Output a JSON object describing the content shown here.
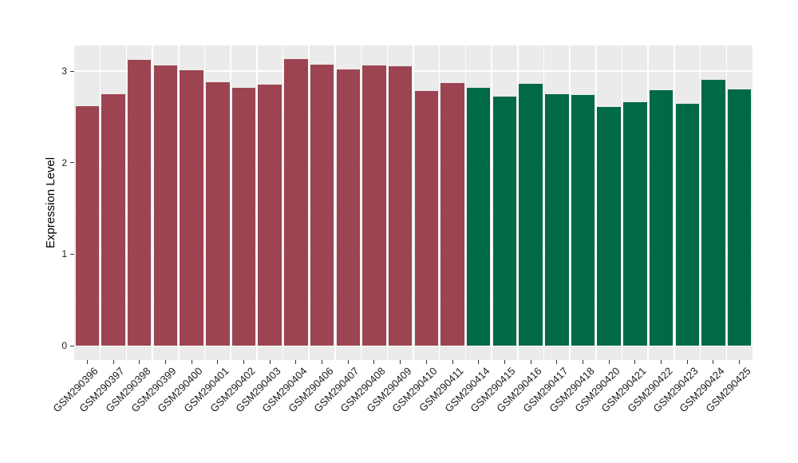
{
  "chart_data": {
    "type": "bar",
    "title": "",
    "xlabel": "",
    "ylabel": "Expression Level",
    "ylim": [
      0,
      3.28
    ],
    "yticks": [
      0,
      1,
      2,
      3
    ],
    "yticks_minor": [
      0.5,
      1.5,
      2.5
    ],
    "grid": "on",
    "legend": "none",
    "panel_background": "#EBEBEB",
    "grid_color": "#FFFFFF",
    "tick_mark_color": "#333333",
    "axis_text_color": "#1A1A1A",
    "group_colors": {
      "maroon": "#9C4452",
      "green": "#006948"
    },
    "bar_groups": [
      "maroon",
      "maroon",
      "maroon",
      "maroon",
      "maroon",
      "maroon",
      "maroon",
      "maroon",
      "maroon",
      "maroon",
      "maroon",
      "maroon",
      "maroon",
      "maroon",
      "maroon",
      "green",
      "green",
      "green",
      "green",
      "green",
      "green",
      "green",
      "green",
      "green",
      "green",
      "green"
    ],
    "categories": [
      "GSM290396",
      "GSM290397",
      "GSM290398",
      "GSM290399",
      "GSM290400",
      "GSM290401",
      "GSM290402",
      "GSM290403",
      "GSM290404",
      "GSM290406",
      "GSM290407",
      "GSM290408",
      "GSM290409",
      "GSM290410",
      "GSM290411",
      "GSM290414",
      "GSM290415",
      "GSM290416",
      "GSM290417",
      "GSM290418",
      "GSM290420",
      "GSM290421",
      "GSM290422",
      "GSM290423",
      "GSM290424",
      "GSM290425"
    ],
    "values": [
      2.62,
      2.75,
      3.12,
      3.06,
      3.01,
      2.88,
      2.82,
      2.85,
      3.13,
      3.07,
      3.02,
      3.06,
      3.05,
      2.78,
      2.87,
      2.82,
      2.72,
      2.86,
      2.75,
      2.74,
      2.61,
      2.66,
      2.79,
      2.64,
      2.91,
      2.8
    ]
  }
}
